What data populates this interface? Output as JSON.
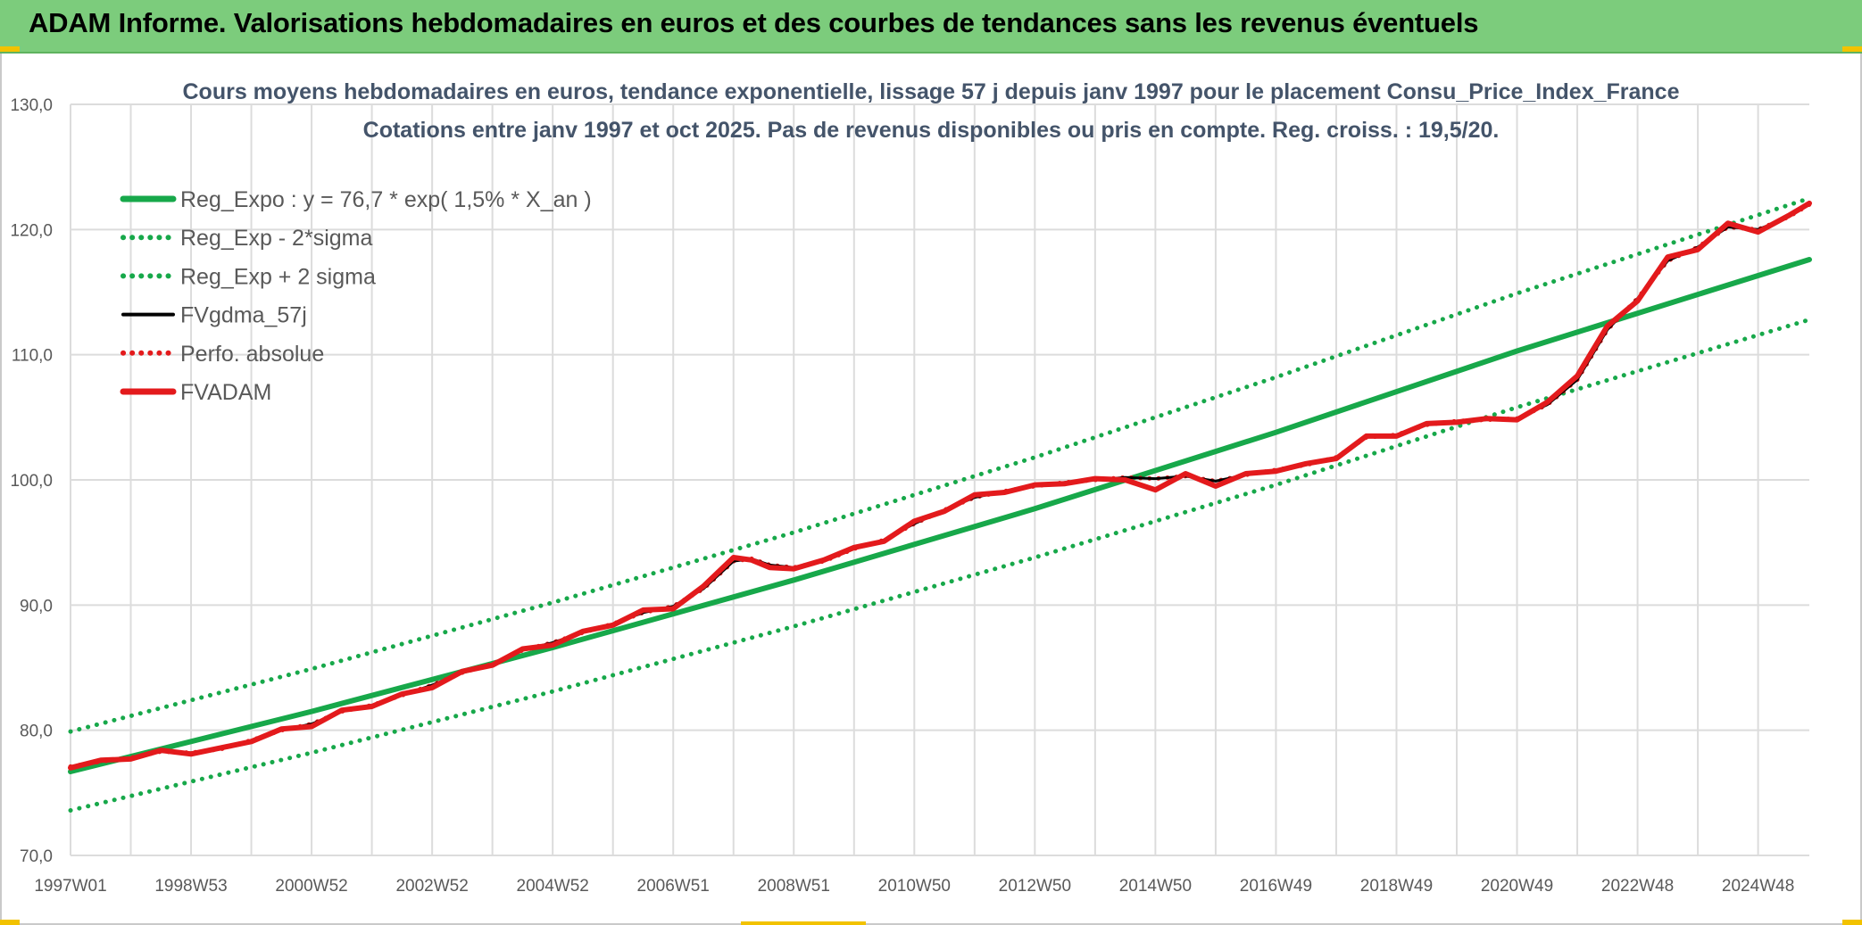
{
  "banner": {
    "title": "ADAM Informe. Valorisations hebdomadaires en euros et des courbes de tendances sans les revenus éventuels"
  },
  "colors": {
    "banner_bg": "#7ccc7c",
    "reg_green": "#17a84a",
    "black": "#000000",
    "red": "#e31a1c",
    "corner_accent": "#f2c200"
  },
  "chart_data": {
    "type": "line",
    "title": "Cours moyens hebdomadaires en euros, tendance exponentielle, lissage 57 j depuis janv 1997 pour le placement Consu_Price_Index_France",
    "subtitle": "Cotations entre janv 1997 et oct 2025. Pas de revenus disponibles ou pris en compte. Reg. croiss. : 19,5/20.",
    "xlabel": "",
    "ylabel": "",
    "ylim": [
      70,
      130
    ],
    "xlim": [
      1997.0,
      2025.85
    ],
    "y_ticks": [
      "70,0",
      "80,0",
      "90,0",
      "100,0",
      "110,0",
      "120,0",
      "130,0"
    ],
    "x_ticks": [
      {
        "label": "1997W01",
        "year": 1997.0
      },
      {
        "label": "1998W53",
        "year": 1999.0
      },
      {
        "label": "2000W52",
        "year": 2001.0
      },
      {
        "label": "2002W52",
        "year": 2003.0
      },
      {
        "label": "2004W52",
        "year": 2005.0
      },
      {
        "label": "2006W51",
        "year": 2007.0
      },
      {
        "label": "2008W51",
        "year": 2009.0
      },
      {
        "label": "2010W50",
        "year": 2011.0
      },
      {
        "label": "2012W50",
        "year": 2013.0
      },
      {
        "label": "2014W50",
        "year": 2015.0
      },
      {
        "label": "2016W49",
        "year": 2017.0
      },
      {
        "label": "2018W49",
        "year": 2019.0
      },
      {
        "label": "2020W49",
        "year": 2021.0
      },
      {
        "label": "2022W48",
        "year": 2023.0
      },
      {
        "label": "2024W48",
        "year": 2025.0
      }
    ],
    "grid": true,
    "legend_position": "top-left",
    "series": [
      {
        "name": "Reg_Expo : y = 76,7 * exp( 1,5% *  X_an )",
        "style": "solid-thick",
        "color": "#17a84a",
        "x": [
          1997.0,
          2001.0,
          2005.0,
          2009.0,
          2013.0,
          2017.0,
          2021.0,
          2025.85
        ],
        "y": [
          76.7,
          81.5,
          86.6,
          92.0,
          97.7,
          103.8,
          110.3,
          117.6
        ]
      },
      {
        "name": "Reg_Exp - 2*sigma",
        "style": "dotted",
        "color": "#17a84a",
        "x": [
          1997.0,
          2001.0,
          2005.0,
          2009.0,
          2013.0,
          2017.0,
          2021.0,
          2025.85
        ],
        "y": [
          73.6,
          78.2,
          83.1,
          88.3,
          93.8,
          99.6,
          105.8,
          112.8
        ]
      },
      {
        "name": "Reg_Exp + 2 sigma",
        "style": "dotted",
        "color": "#17a84a",
        "x": [
          1997.0,
          2001.0,
          2005.0,
          2009.0,
          2013.0,
          2017.0,
          2021.0,
          2025.85
        ],
        "y": [
          79.9,
          84.9,
          90.2,
          95.8,
          101.8,
          108.2,
          114.9,
          122.5
        ]
      },
      {
        "name": "FVgdma_57j",
        "style": "solid",
        "color": "#000000",
        "x": [
          1997.0,
          1997.5,
          1998.0,
          1998.5,
          1999.0,
          1999.5,
          2000.0,
          2000.5,
          2001.0,
          2001.5,
          2002.0,
          2002.5,
          2003.0,
          2003.5,
          2004.0,
          2004.5,
          2005.0,
          2005.5,
          2006.0,
          2006.5,
          2007.0,
          2007.5,
          2008.0,
          2008.3,
          2008.6,
          2009.0,
          2009.5,
          2010.0,
          2010.5,
          2011.0,
          2011.5,
          2012.0,
          2012.5,
          2013.0,
          2013.5,
          2014.0,
          2014.5,
          2015.0,
          2015.5,
          2016.0,
          2016.5,
          2017.0,
          2017.5,
          2018.0,
          2018.5,
          2019.0,
          2019.5,
          2020.0,
          2020.5,
          2021.0,
          2021.5,
          2022.0,
          2022.5,
          2023.0,
          2023.5,
          2024.0,
          2024.5,
          2025.0,
          2025.5,
          2025.85
        ],
        "y": [
          77.1,
          77.5,
          77.8,
          78.3,
          78.2,
          78.5,
          79.2,
          80.0,
          80.5,
          81.5,
          82.0,
          82.8,
          83.6,
          84.6,
          85.3,
          86.4,
          87.0,
          87.8,
          88.5,
          89.4,
          89.9,
          91.3,
          93.5,
          93.7,
          93.2,
          93.0,
          93.5,
          94.5,
          95.2,
          96.5,
          97.6,
          98.6,
          99.1,
          99.5,
          99.8,
          100.0,
          100.2,
          100.1,
          100.3,
          99.9,
          100.4,
          100.8,
          101.2,
          101.8,
          103.4,
          103.6,
          104.4,
          104.7,
          104.8,
          104.9,
          106.0,
          108.0,
          112.0,
          114.5,
          117.5,
          118.6,
          120.2,
          120.0,
          121.0,
          122.0
        ]
      },
      {
        "name": "Perfo. absolue",
        "style": "dotted",
        "color": "#e31a1c",
        "x": [
          1997.0,
          1997.5,
          1998.0,
          1998.5,
          1999.0,
          1999.5,
          2000.0,
          2000.5,
          2001.0,
          2001.5,
          2002.0,
          2002.5,
          2003.0,
          2003.5,
          2004.0,
          2004.5,
          2005.0,
          2005.5,
          2006.0,
          2006.5,
          2007.0,
          2007.5,
          2008.0,
          2008.3,
          2008.6,
          2009.0,
          2009.5,
          2010.0,
          2010.5,
          2011.0,
          2011.5,
          2012.0,
          2012.5,
          2013.0,
          2013.5,
          2014.0,
          2014.5,
          2015.0,
          2015.5,
          2016.0,
          2016.5,
          2017.0,
          2017.5,
          2018.0,
          2018.5,
          2019.0,
          2019.5,
          2020.0,
          2020.5,
          2021.0,
          2021.5,
          2022.0,
          2022.5,
          2023.0,
          2023.5,
          2024.0,
          2024.5,
          2025.0,
          2025.5,
          2025.85
        ],
        "y": [
          77.1,
          77.5,
          77.8,
          78.3,
          78.2,
          78.5,
          79.2,
          80.0,
          80.5,
          81.5,
          82.0,
          82.8,
          83.6,
          84.6,
          85.3,
          86.4,
          87.0,
          87.8,
          88.5,
          89.4,
          89.9,
          91.3,
          93.5,
          93.7,
          93.2,
          93.0,
          93.5,
          94.5,
          95.2,
          96.5,
          97.6,
          98.6,
          99.1,
          99.5,
          99.8,
          100.0,
          100.2,
          100.1,
          100.3,
          99.9,
          100.4,
          100.8,
          101.2,
          101.8,
          103.4,
          103.6,
          104.4,
          104.7,
          104.8,
          104.9,
          106.0,
          108.0,
          112.0,
          114.5,
          117.5,
          118.6,
          120.2,
          120.0,
          121.0,
          122.0
        ]
      },
      {
        "name": "FVADAM",
        "style": "solid-thick",
        "color": "#e31a1c",
        "x": [
          1997.0,
          1997.5,
          1998.0,
          1998.5,
          1999.0,
          1999.5,
          2000.0,
          2000.5,
          2001.0,
          2001.5,
          2002.0,
          2002.5,
          2003.0,
          2003.5,
          2004.0,
          2004.5,
          2005.0,
          2005.5,
          2006.0,
          2006.5,
          2007.0,
          2007.5,
          2008.0,
          2008.3,
          2008.6,
          2009.0,
          2009.5,
          2010.0,
          2010.5,
          2011.0,
          2011.5,
          2012.0,
          2012.5,
          2013.0,
          2013.5,
          2014.0,
          2014.5,
          2015.0,
          2015.5,
          2016.0,
          2016.5,
          2017.0,
          2017.5,
          2018.0,
          2018.5,
          2019.0,
          2019.5,
          2020.0,
          2020.5,
          2021.0,
          2021.5,
          2022.0,
          2022.5,
          2023.0,
          2023.5,
          2024.0,
          2024.5,
          2025.0,
          2025.5,
          2025.85
        ],
        "y": [
          77.0,
          77.6,
          77.7,
          78.4,
          78.1,
          78.6,
          79.1,
          80.1,
          80.3,
          81.6,
          81.9,
          82.9,
          83.4,
          84.7,
          85.2,
          86.5,
          86.8,
          87.9,
          88.4,
          89.6,
          89.7,
          91.5,
          93.8,
          93.6,
          93.0,
          92.9,
          93.6,
          94.6,
          95.1,
          96.7,
          97.5,
          98.8,
          99.0,
          99.6,
          99.7,
          100.1,
          100.0,
          99.2,
          100.5,
          99.5,
          100.5,
          100.7,
          101.3,
          101.7,
          103.5,
          103.5,
          104.5,
          104.6,
          104.9,
          104.8,
          106.2,
          108.3,
          112.3,
          114.3,
          117.8,
          118.4,
          120.5,
          119.8,
          121.1,
          122.1
        ]
      }
    ]
  }
}
